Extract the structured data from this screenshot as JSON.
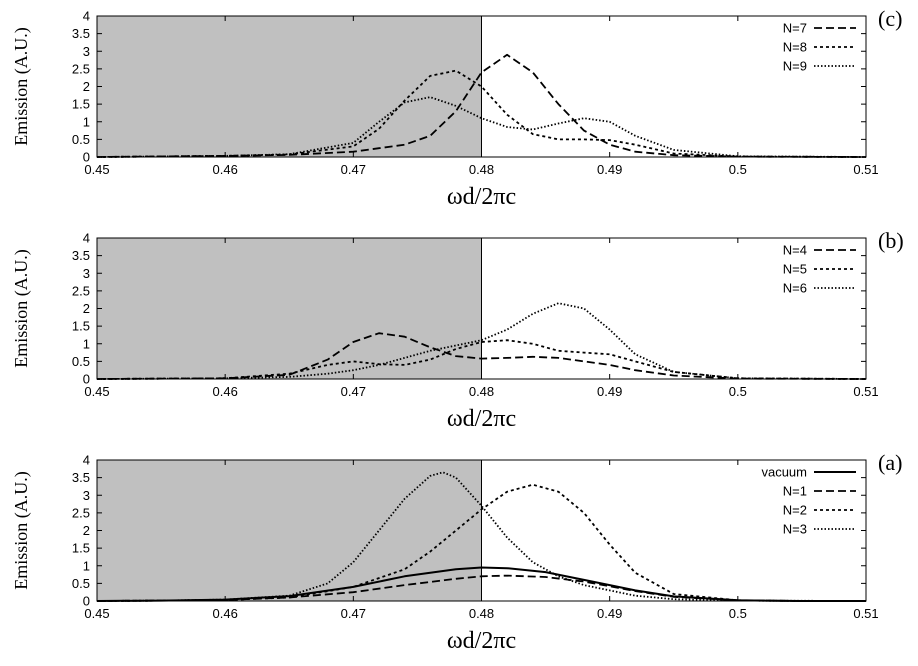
{
  "chart_data": [
    {
      "type": "line",
      "panel_label": "(c)",
      "xlabel": "ωd/2πc",
      "ylabel": "Emission (A.U.)",
      "xlim": [
        0.45,
        0.51
      ],
      "ylim": [
        0,
        4
      ],
      "x_ticks": [
        "0.45",
        "0.46",
        "0.47",
        "0.48",
        "0.49",
        "0.5",
        "0.51"
      ],
      "y_ticks": [
        "0",
        "0.5",
        "1",
        "1.5",
        "2",
        "2.5",
        "3",
        "3.5",
        "4"
      ],
      "shaded_region": [
        0.45,
        0.48
      ],
      "legend_position": "top-right",
      "series": [
        {
          "name": "N=7",
          "style": "dashed",
          "x": [
            0.45,
            0.46,
            0.465,
            0.47,
            0.472,
            0.474,
            0.476,
            0.478,
            0.48,
            0.482,
            0.484,
            0.486,
            0.488,
            0.49,
            0.492,
            0.495,
            0.5,
            0.51
          ],
          "y": [
            0.0,
            0.03,
            0.06,
            0.15,
            0.25,
            0.35,
            0.6,
            1.3,
            2.4,
            2.9,
            2.4,
            1.5,
            0.75,
            0.35,
            0.15,
            0.05,
            0.01,
            0.0
          ]
        },
        {
          "name": "N=8",
          "style": "dotted",
          "x": [
            0.45,
            0.46,
            0.465,
            0.47,
            0.472,
            0.474,
            0.476,
            0.478,
            0.48,
            0.482,
            0.484,
            0.486,
            0.488,
            0.49,
            0.492,
            0.495,
            0.5,
            0.51
          ],
          "y": [
            0.0,
            0.03,
            0.07,
            0.3,
            0.8,
            1.6,
            2.3,
            2.45,
            2.0,
            1.2,
            0.65,
            0.5,
            0.5,
            0.48,
            0.35,
            0.1,
            0.01,
            0.0
          ]
        },
        {
          "name": "N=9",
          "style": "fine-dotted",
          "x": [
            0.45,
            0.46,
            0.465,
            0.47,
            0.472,
            0.474,
            0.476,
            0.478,
            0.48,
            0.482,
            0.484,
            0.486,
            0.488,
            0.49,
            0.492,
            0.495,
            0.5,
            0.51
          ],
          "y": [
            0.0,
            0.03,
            0.08,
            0.4,
            1.0,
            1.55,
            1.7,
            1.45,
            1.1,
            0.85,
            0.78,
            0.95,
            1.1,
            1.0,
            0.6,
            0.2,
            0.02,
            0.0
          ]
        }
      ]
    },
    {
      "type": "line",
      "panel_label": "(b)",
      "xlabel": "ωd/2πc",
      "ylabel": "Emission (A.U.)",
      "xlim": [
        0.45,
        0.51
      ],
      "ylim": [
        0,
        4
      ],
      "x_ticks": [
        "0.45",
        "0.46",
        "0.47",
        "0.48",
        "0.49",
        "0.5",
        "0.51"
      ],
      "y_ticks": [
        "0",
        "0.5",
        "1",
        "1.5",
        "2",
        "2.5",
        "3",
        "3.5",
        "4"
      ],
      "shaded_region": [
        0.45,
        0.48
      ],
      "legend_position": "top-right",
      "series": [
        {
          "name": "N=4",
          "style": "dashed",
          "x": [
            0.45,
            0.46,
            0.465,
            0.468,
            0.47,
            0.472,
            0.474,
            0.476,
            0.478,
            0.48,
            0.482,
            0.484,
            0.486,
            0.488,
            0.49,
            0.492,
            0.495,
            0.5,
            0.51
          ],
          "y": [
            0.0,
            0.02,
            0.12,
            0.55,
            1.05,
            1.3,
            1.2,
            0.9,
            0.65,
            0.58,
            0.6,
            0.63,
            0.6,
            0.5,
            0.4,
            0.25,
            0.1,
            0.01,
            0.0
          ]
        },
        {
          "name": "N=5",
          "style": "dotted",
          "x": [
            0.45,
            0.46,
            0.465,
            0.468,
            0.47,
            0.472,
            0.474,
            0.476,
            0.478,
            0.48,
            0.482,
            0.484,
            0.486,
            0.488,
            0.49,
            0.492,
            0.495,
            0.5,
            0.51
          ],
          "y": [
            0.0,
            0.02,
            0.15,
            0.4,
            0.5,
            0.42,
            0.4,
            0.55,
            0.85,
            1.05,
            1.1,
            1.0,
            0.8,
            0.75,
            0.7,
            0.5,
            0.2,
            0.02,
            0.0
          ]
        },
        {
          "name": "N=6",
          "style": "fine-dotted",
          "x": [
            0.45,
            0.46,
            0.465,
            0.468,
            0.47,
            0.472,
            0.474,
            0.476,
            0.478,
            0.48,
            0.482,
            0.484,
            0.486,
            0.488,
            0.49,
            0.492,
            0.495,
            0.5,
            0.51
          ],
          "y": [
            0.0,
            0.02,
            0.06,
            0.15,
            0.25,
            0.4,
            0.6,
            0.8,
            0.95,
            1.1,
            1.4,
            1.85,
            2.15,
            2.0,
            1.4,
            0.7,
            0.2,
            0.02,
            0.0
          ]
        }
      ]
    },
    {
      "type": "line",
      "panel_label": "(a)",
      "xlabel": "ωd/2πc",
      "ylabel": "Emission (A.U.)",
      "xlim": [
        0.45,
        0.51
      ],
      "ylim": [
        0,
        4
      ],
      "x_ticks": [
        "0.45",
        "0.46",
        "0.47",
        "0.48",
        "0.49",
        "0.5",
        "0.51"
      ],
      "y_ticks": [
        "0",
        "0.5",
        "1",
        "1.5",
        "2",
        "2.5",
        "3",
        "3.5",
        "4"
      ],
      "shaded_region": [
        0.45,
        0.48
      ],
      "legend_position": "top-right",
      "series": [
        {
          "name": "vacuum",
          "style": "solid",
          "x": [
            0.45,
            0.455,
            0.46,
            0.465,
            0.47,
            0.474,
            0.478,
            0.48,
            0.482,
            0.485,
            0.488,
            0.49,
            0.492,
            0.495,
            0.5,
            0.505,
            0.51
          ],
          "y": [
            0.0,
            0.01,
            0.04,
            0.14,
            0.4,
            0.7,
            0.9,
            0.95,
            0.93,
            0.82,
            0.6,
            0.45,
            0.3,
            0.13,
            0.02,
            0.0,
            0.0
          ]
        },
        {
          "name": "N=1",
          "style": "dashed",
          "x": [
            0.45,
            0.455,
            0.46,
            0.465,
            0.47,
            0.474,
            0.478,
            0.48,
            0.482,
            0.485,
            0.488,
            0.49,
            0.492,
            0.495,
            0.5,
            0.505,
            0.51
          ],
          "y": [
            0.0,
            0.01,
            0.03,
            0.1,
            0.25,
            0.45,
            0.63,
            0.7,
            0.72,
            0.68,
            0.55,
            0.42,
            0.28,
            0.12,
            0.02,
            0.0,
            0.0
          ]
        },
        {
          "name": "N=2",
          "style": "dotted",
          "x": [
            0.45,
            0.455,
            0.46,
            0.465,
            0.47,
            0.474,
            0.476,
            0.478,
            0.48,
            0.482,
            0.484,
            0.486,
            0.488,
            0.49,
            0.492,
            0.495,
            0.5,
            0.505,
            0.51
          ],
          "y": [
            0.0,
            0.01,
            0.03,
            0.1,
            0.4,
            0.9,
            1.4,
            2.0,
            2.6,
            3.1,
            3.3,
            3.1,
            2.5,
            1.6,
            0.8,
            0.2,
            0.02,
            0.0,
            0.0
          ]
        },
        {
          "name": "N=3",
          "style": "fine-dotted",
          "x": [
            0.45,
            0.455,
            0.46,
            0.465,
            0.468,
            0.47,
            0.472,
            0.474,
            0.476,
            0.477,
            0.478,
            0.48,
            0.482,
            0.484,
            0.486,
            0.488,
            0.49,
            0.492,
            0.495,
            0.5,
            0.51
          ],
          "y": [
            0.0,
            0.01,
            0.04,
            0.15,
            0.5,
            1.1,
            2.0,
            2.9,
            3.55,
            3.65,
            3.5,
            2.7,
            1.8,
            1.1,
            0.7,
            0.45,
            0.3,
            0.15,
            0.05,
            0.01,
            0.0
          ]
        }
      ]
    }
  ]
}
